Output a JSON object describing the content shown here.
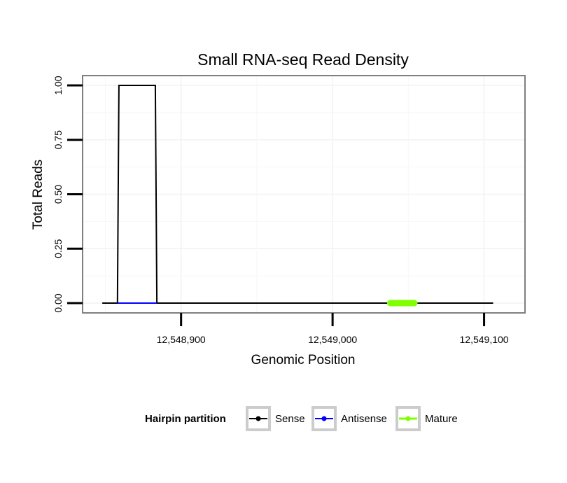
{
  "chart_data": {
    "type": "line",
    "title": "Small RNA-seq Read Density",
    "xlabel": "Genomic Position",
    "ylabel": "Total Reads",
    "xlim": [
      12548835,
      12549127
    ],
    "ylim": [
      -0.045,
      1.045
    ],
    "x_ticks": [
      12548900,
      12549000,
      12549100
    ],
    "x_tick_labels": [
      "12,548,900",
      "12,549,000",
      "12,549,100"
    ],
    "y_ticks": [
      0,
      0.25,
      0.5,
      0.75,
      1.0
    ],
    "y_tick_labels": [
      "0.00",
      "0.25",
      "0.50",
      "0.75",
      "1.00"
    ],
    "grid": true,
    "legend": {
      "position": "bottom",
      "title": "Hairpin partition",
      "entries": [
        "Sense",
        "Antisense",
        "Mature"
      ]
    },
    "series": [
      {
        "name": "Sense",
        "color": "#000000",
        "x": [
          12548848,
          12548858,
          12548859,
          12548883,
          12548884,
          12549106
        ],
        "y": [
          0,
          0,
          1,
          1,
          0,
          0
        ]
      },
      {
        "name": "Antisense",
        "color": "#0000ff",
        "x": [
          12548858,
          12548884
        ],
        "y": [
          0,
          0
        ]
      },
      {
        "name": "Mature",
        "color": "#7fff00",
        "x": [
          12549038,
          12549054
        ],
        "y": [
          0,
          0
        ]
      }
    ]
  }
}
